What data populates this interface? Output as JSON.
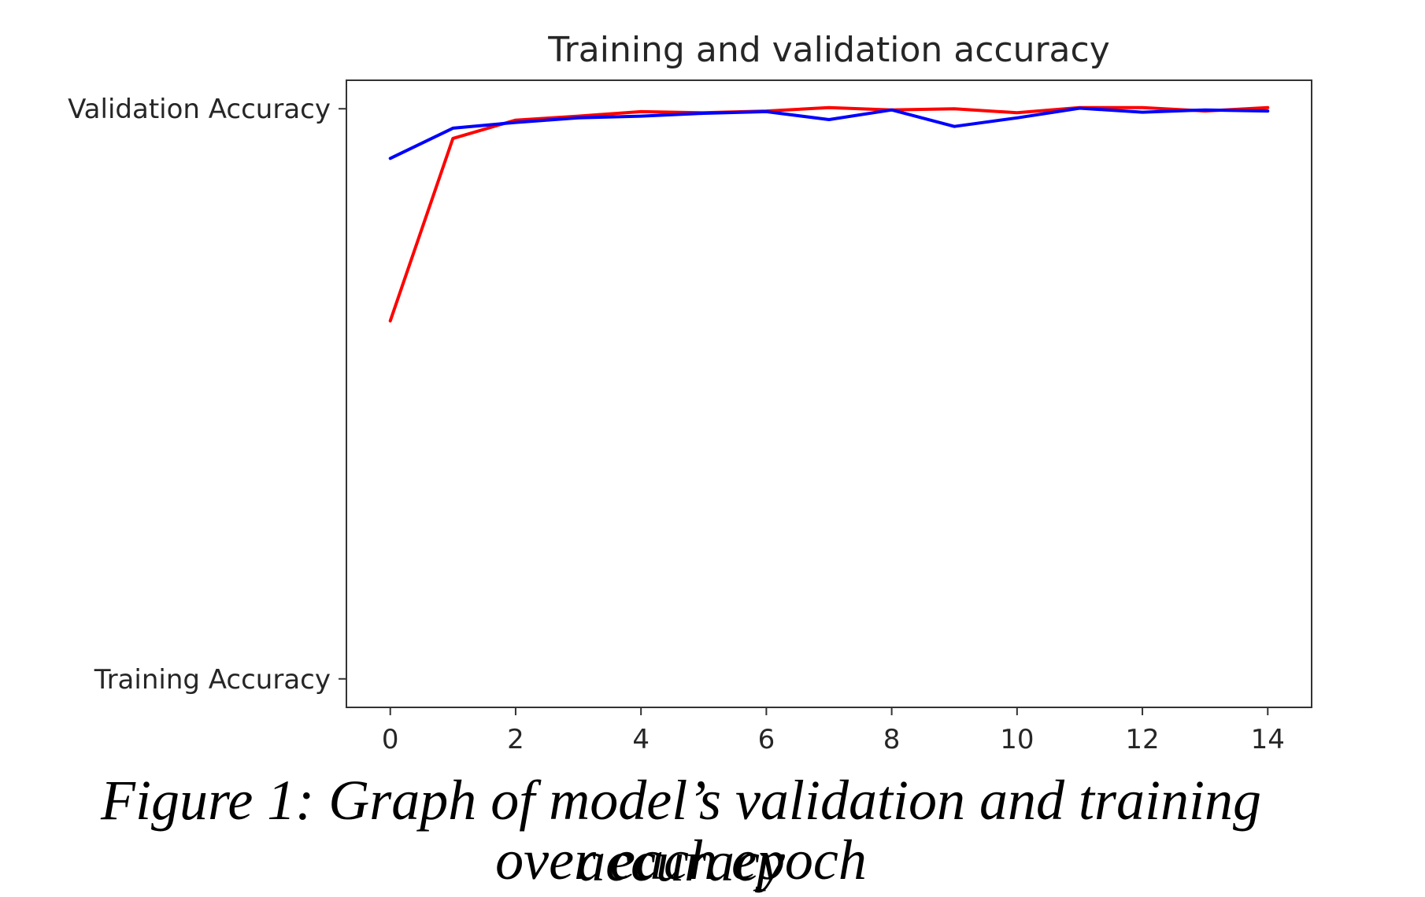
{
  "chart_data": {
    "type": "line",
    "title": "Training and validation accuracy",
    "xlabel": "",
    "ylabel": "",
    "x": [
      0,
      1,
      2,
      3,
      4,
      5,
      6,
      7,
      8,
      9,
      10,
      11,
      12,
      13,
      14
    ],
    "xticks": [
      "0",
      "2",
      "4",
      "6",
      "8",
      "10",
      "12",
      "14"
    ],
    "xtick_values": [
      0,
      2,
      4,
      6,
      8,
      10,
      12,
      14
    ],
    "xlim": [
      -0.7,
      14.7
    ],
    "ylim": [
      -0.05,
      1.05
    ],
    "yticks": [
      "Validation Accuracy",
      "Training Accuracy"
    ],
    "ytick_values": [
      1.0,
      0.0
    ],
    "grid": false,
    "series": [
      {
        "name": "Training Accuracy",
        "color": "#ff0000",
        "values": [
          0.628,
          0.948,
          0.98,
          0.987,
          0.995,
          0.993,
          0.996,
          1.002,
          0.998,
          1.0,
          0.993,
          1.002,
          1.002,
          0.996,
          1.002
        ]
      },
      {
        "name": "Validation Accuracy",
        "color": "#0000ff",
        "values": [
          0.913,
          0.966,
          0.976,
          0.984,
          0.987,
          0.992,
          0.995,
          0.981,
          0.998,
          0.969,
          0.984,
          1.001,
          0.994,
          0.998,
          0.996
        ]
      }
    ]
  },
  "caption": {
    "line1": "Figure 1: Graph of model’s validation and training accuracy",
    "line2": "over each epoch"
  }
}
